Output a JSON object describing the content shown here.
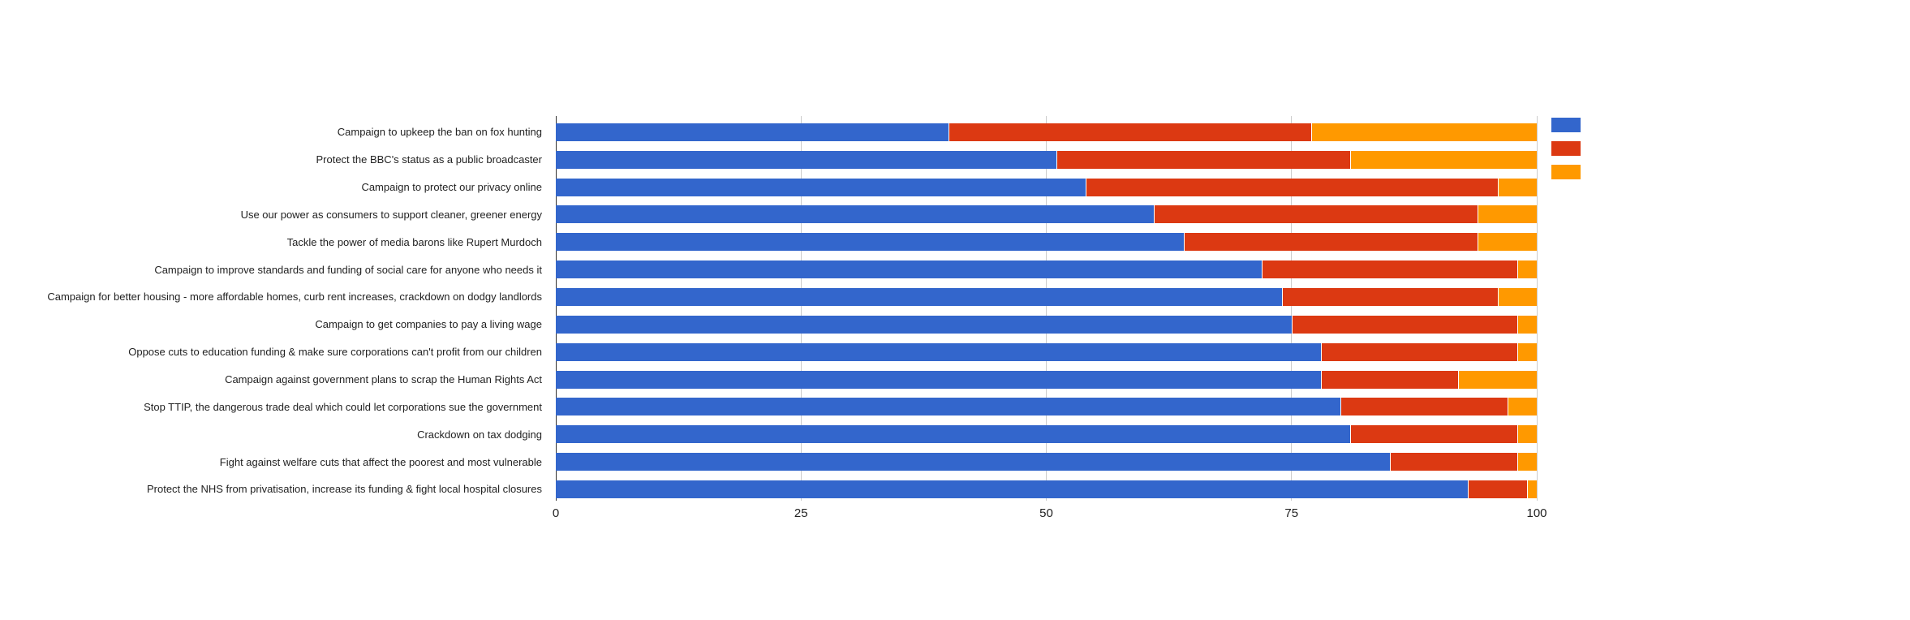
{
  "page": {
    "background": "#ffffff"
  },
  "axis_style": {
    "grid_color": "#cccccc",
    "baseline_color": "#333333",
    "tick_label_color": "#222222",
    "category_label_color": "#222222"
  },
  "legend": {
    "position": "right",
    "items": [
      {
        "label": "",
        "color": "#3366CC"
      },
      {
        "label": "",
        "color": "#DC3912"
      },
      {
        "label": "",
        "color": "#FF9900"
      }
    ]
  },
  "chart_data": {
    "type": "bar",
    "orientation": "horizontal",
    "stacked": true,
    "title": "",
    "xlabel": "",
    "ylabel": "",
    "xlim": [
      0,
      100
    ],
    "xticks": [
      0,
      25,
      50,
      75,
      100
    ],
    "grid": true,
    "legend_position": "right",
    "categories": [
      "Campaign to upkeep the ban on fox hunting",
      "Protect the BBC's status as a public broadcaster",
      "Campaign to protect our privacy online",
      "Use our power as consumers to support cleaner, greener energy",
      "Tackle the power of media barons like Rupert Murdoch",
      "Campaign to improve standards and funding of social care for anyone who needs it",
      "Campaign for better housing - more affordable homes, curb rent increases, crackdown on dodgy landlords",
      "Campaign to get companies to pay a living wage",
      "Oppose cuts to education funding & make sure corporations can't profit from our children",
      "Campaign against government plans to scrap the Human Rights Act",
      "Stop TTIP, the dangerous trade deal which could let corporations sue the government",
      "Crackdown on tax dodging",
      "Fight against welfare cuts that affect the poorest and most vulnerable",
      "Protect the NHS from privatisation, increase its funding & fight local hospital closures"
    ],
    "series": [
      {
        "name": "",
        "color": "#3366CC",
        "values": [
          40,
          51,
          54,
          61,
          64,
          72,
          74,
          75,
          78,
          78,
          80,
          81,
          85,
          93
        ]
      },
      {
        "name": "",
        "color": "#DC3912",
        "values": [
          37,
          30,
          42,
          33,
          30,
          26,
          22,
          23,
          20,
          14,
          17,
          17,
          13,
          6
        ]
      },
      {
        "name": "",
        "color": "#FF9900",
        "values": [
          23,
          19,
          4,
          6,
          6,
          2,
          4,
          2,
          2,
          8,
          3,
          2,
          2,
          1
        ]
      }
    ]
  }
}
